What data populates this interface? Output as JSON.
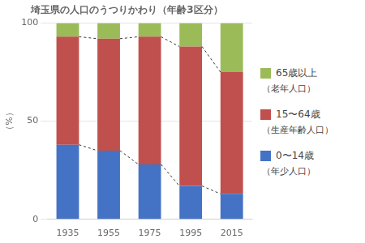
{
  "chart_data": {
    "type": "bar",
    "title": "埼玉県の人口のうつりかわり（年齢3区分）",
    "ylabel": "（%）",
    "categories": [
      "1935",
      "1955",
      "1975",
      "1995",
      "2015"
    ],
    "series": [
      {
        "name": "0〜14歳",
        "sublabel": "（年少人口）",
        "color": "#4472C4",
        "values": [
          38.0,
          35.0,
          28.0,
          17.0,
          13.0
        ]
      },
      {
        "name": "15〜64歳",
        "sublabel": "（生産年齢人口）",
        "color": "#C0504D",
        "values": [
          55.0,
          57.0,
          65.0,
          71.0,
          62.0
        ]
      },
      {
        "name": "65歳以上",
        "sublabel": "（老年人口）",
        "color": "#9BBB59",
        "values": [
          7.0,
          8.0,
          7.0,
          12.0,
          25.0
        ]
      }
    ],
    "stacked": true,
    "ylim": [
      0,
      100
    ],
    "yticks": [
      0,
      50,
      100
    ],
    "grid": true,
    "legend": "right"
  }
}
